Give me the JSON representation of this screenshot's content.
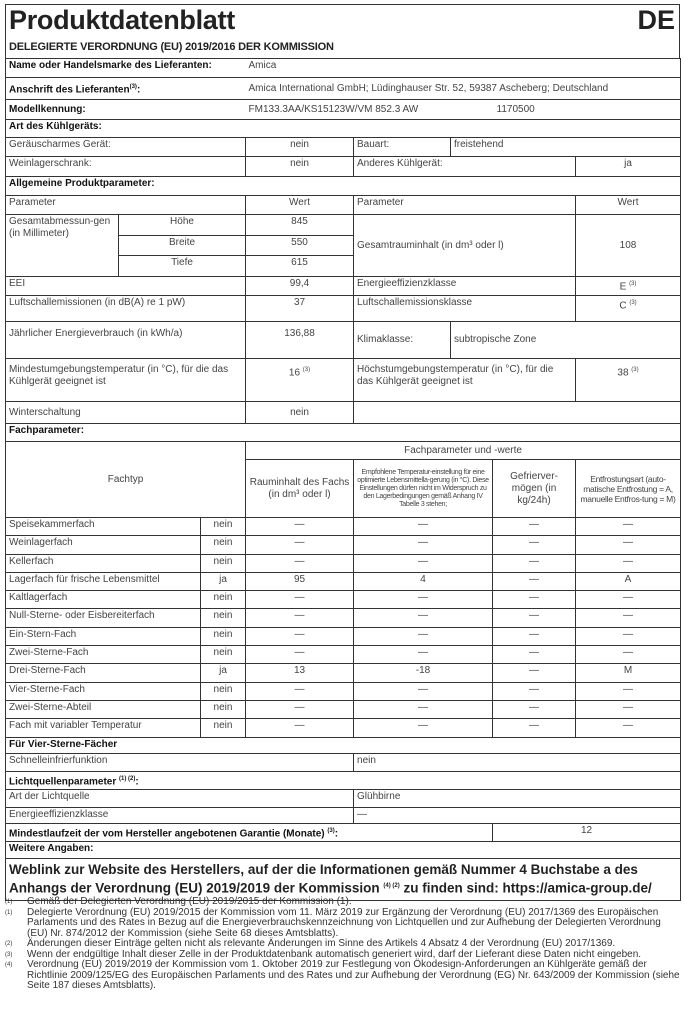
{
  "header": {
    "title": "Produktdatenblatt",
    "lang": "DE",
    "subtitle": "DELEGIERTE VERORDNUNG (EU) 2019/2016 DER KOMMISSION"
  },
  "supplier": {
    "name_label": "Name oder Handelsmarke des Lieferanten:",
    "name": "Amica",
    "address_label": "Anschrift des Lieferanten",
    "address_sup": "(3)",
    "address": "Amica International GmbH; Lüdinghauser Str. 52, 59387 Ascheberg; Deutschland",
    "model_label": "Modellkennung:",
    "model": "FM133.3AA/KS15123W/VM 852.3 AW",
    "model_number": "1170500"
  },
  "type": {
    "heading": "Art des Kühlgeräts:",
    "low_noise_label": "Geräuscharmes Gerät:",
    "low_noise": "nein",
    "design_label": "Bauart:",
    "design": "freistehend",
    "wine_label": "Weinlagerschrank:",
    "wine": "nein",
    "other_label": "Anderes Kühlgerät:",
    "other": "ja"
  },
  "general": {
    "heading": "Allgemeine Produktparameter:",
    "param_header": "Parameter",
    "value_header": "Wert",
    "dims_label": "Gesamtabmessun-gen (in Millimeter)",
    "height_label": "Höhe",
    "height": "845",
    "width_label": "Breite",
    "width": "550",
    "depth_label": "Tiefe",
    "depth": "615",
    "volume_label": "Gesamtrauminhalt (in dm³ oder l)",
    "volume": "108",
    "eei_label": "EEI",
    "eei": "99,4",
    "energy_class_label": "Energieeffizienzklasse",
    "energy_class": "E",
    "energy_class_sup": "(3)",
    "noise_label": "Luftschallemissionen (in dB(A) re 1 pW)",
    "noise": "37",
    "noise_class_label": "Luftschallemissionsklasse",
    "noise_class": "C",
    "noise_class_sup": "(3)",
    "annual_label": "Jährlicher Energieverbrauch (in kWh/a)",
    "annual": "136,88",
    "climate_label": "Klimaklasse:",
    "climate": "subtropische Zone",
    "min_temp_label": "Mindestumgebungstemperatur (in °C), für die das Kühlgerät geeignet ist",
    "min_temp": "16",
    "min_temp_sup": "(3)",
    "max_temp_label": "Höchstumgebungstemperatur (in °C), für die das Kühlgerät geeignet ist",
    "max_temp": "38",
    "max_temp_sup": "(3)",
    "winter_label": "Winterschaltung",
    "winter": "nein"
  },
  "compartments": {
    "heading": "Fachparameter:",
    "type_header": "Fachtyp",
    "group_header": "Fachparameter und -werte",
    "col_volume": "Rauminhalt des Fachs (in dm³ oder l)",
    "col_temp": "Empfohlene Temperatur-einstellung für eine optimierte Lebensmittella-gerung (in °C). Diese Einstellungen dürfen nicht im Widerspruch zu den Lagerbedingungen gemäß Anhang IV Tabelle 3 stehen;",
    "col_freeze": "Gefrierver-mögen (in kg/24h)",
    "col_defrost": "Entfrostungsart (auto-matische Entfrostung = A, manuelle Entfros-tung = M)",
    "rows": [
      {
        "name": "Speisekammerfach",
        "present": "nein",
        "volume": "—",
        "temp": "—",
        "freeze": "—",
        "defrost": "—"
      },
      {
        "name": "Weinlagerfach",
        "present": "nein",
        "volume": "—",
        "temp": "—",
        "freeze": "—",
        "defrost": "—"
      },
      {
        "name": "Kellerfach",
        "present": "nein",
        "volume": "—",
        "temp": "—",
        "freeze": "—",
        "defrost": "—"
      },
      {
        "name": "Lagerfach für frische Lebensmittel",
        "present": "ja",
        "volume": "95",
        "temp": "4",
        "freeze": "—",
        "defrost": "A"
      },
      {
        "name": "Kaltlagerfach",
        "present": "nein",
        "volume": "—",
        "temp": "—",
        "freeze": "—",
        "defrost": "—"
      },
      {
        "name": "Null-Sterne- oder Eisbereiterfach",
        "present": "nein",
        "volume": "—",
        "temp": "—",
        "freeze": "—",
        "defrost": "—"
      },
      {
        "name": "Ein-Stern-Fach",
        "present": "nein",
        "volume": "—",
        "temp": "—",
        "freeze": "—",
        "defrost": "—"
      },
      {
        "name": "Zwei-Sterne-Fach",
        "present": "nein",
        "volume": "—",
        "temp": "—",
        "freeze": "—",
        "defrost": "—"
      },
      {
        "name": "Drei-Sterne-Fach",
        "present": "ja",
        "volume": "13",
        "temp": "-18",
        "freeze": "—",
        "defrost": "M"
      },
      {
        "name": "Vier-Sterne-Fach",
        "present": "nein",
        "volume": "—",
        "temp": "—",
        "freeze": "—",
        "defrost": "—"
      },
      {
        "name": "Zwei-Sterne-Abteil",
        "present": "nein",
        "volume": "—",
        "temp": "—",
        "freeze": "—",
        "defrost": "—"
      },
      {
        "name": "Fach mit variabler Temperatur",
        "present": "nein",
        "volume": "—",
        "temp": "—",
        "freeze": "—",
        "defrost": "—"
      }
    ]
  },
  "four_star": {
    "heading": "Für Vier-Sterne-Fächer",
    "fast_freeze_label": "Schnelleinfrierfunktion",
    "fast_freeze": "nein"
  },
  "light": {
    "heading": "Lichtquellenparameter",
    "heading_sup": "(1) (2)",
    "type_label": "Art der Lichtquelle",
    "type": "Glühbirne",
    "class_label": "Energieeffizienzklasse",
    "class": "—"
  },
  "warranty": {
    "label": "Mindestlaufzeit der vom Hersteller angebotenen Garantie (Monate)",
    "sup": "(3)",
    "value": "12"
  },
  "more": {
    "heading": "Weitere Angaben:",
    "weblink_1": "Weblink zur Website des Herstellers, auf der die Informationen gemäß Nummer 4 Buchstabe a des Anhangs der Verordnung (EU) 2019/2019 der Kommission",
    "weblink_sup": "(4) (2)",
    "weblink_2": "zu finden sind: https://amica-group.de/"
  },
  "footnotes": [
    {
      "mark": "(1)",
      "text": "Gemäß der Delegierten Verordnung (EU) 2019/2015 der Kommission (1)."
    },
    {
      "mark": "(1)",
      "text": "Delegierte Verordnung (EU) 2019/2015 der Kommission vom 11. März 2019 zur Ergänzung der Verordnung (EU) 2017/1369 des Europäischen Parlaments und des Rates in Bezug auf die Energieverbrauchskennzeichnung von Lichtquellen und zur Aufhebung der Delegierten Verordnung (EU) Nr. 874/2012 der Kommission (siehe Seite 68 dieses Amtsblatts)."
    },
    {
      "mark": "(2)",
      "text": "Änderungen dieser Einträge gelten nicht als relevante Änderungen im Sinne des Artikels 4 Absatz 4 der Verordnung (EU) 2017/1369."
    },
    {
      "mark": "(3)",
      "text": "Wenn der endgültige Inhalt dieser Zelle in der Produktdatenbank automatisch generiert wird, darf der Lieferant diese Daten nicht eingeben."
    },
    {
      "mark": "(4)",
      "text": "Verordnung (EU) 2019/2019 der Kommission vom 1. Oktober 2019 zur Festlegung von Ökodesign-Anforderungen an Kühlgeräte gemäß der Richtlinie 2009/125/EG des Europäischen Parlaments und des Rates und zur Aufhebung der Verordnung (EG) Nr. 643/2009 der Kommission (siehe Seite 187 dieses Amtsblatts)."
    }
  ]
}
